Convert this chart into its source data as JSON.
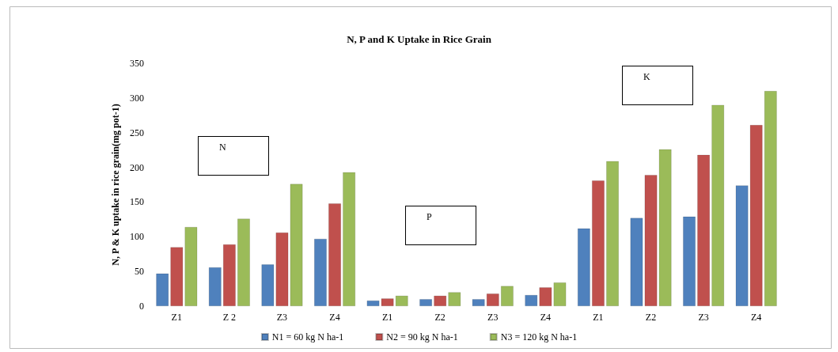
{
  "chart_data": {
    "type": "bar",
    "title": "N, P and K Uptake in Rice Grain",
    "ylabel": "N, P & K uptake in rice grain(mg pot-1)",
    "categories": [
      "Z1",
      "Z 2",
      "Z3",
      "Z4",
      "Z1",
      "Z2",
      "Z3",
      "Z4",
      "Z1",
      "Z2",
      "Z3",
      "Z4"
    ],
    "series": [
      {
        "name": "N1 = 60 kg N ha-1",
        "color": "#4f81bd",
        "values": [
          47,
          56,
          60,
          97,
          8,
          10,
          10,
          16,
          112,
          127,
          129,
          174
        ]
      },
      {
        "name": "N2 = 90 kg N ha-1",
        "color": "#c0504d",
        "values": [
          85,
          89,
          106,
          148,
          11,
          15,
          18,
          27,
          181,
          189,
          218,
          261
        ]
      },
      {
        "name": "N3 = 120 kg N ha-1",
        "color": "#9bbb59",
        "values": [
          114,
          126,
          176,
          193,
          15,
          20,
          29,
          34,
          209,
          226,
          290,
          310
        ]
      }
    ],
    "annotations": [
      "N",
      "P",
      "K"
    ],
    "ylim": [
      0,
      350
    ],
    "yticks": [
      0,
      50,
      100,
      150,
      200,
      250,
      300,
      350
    ],
    "grid": false,
    "legend": "bottom"
  }
}
